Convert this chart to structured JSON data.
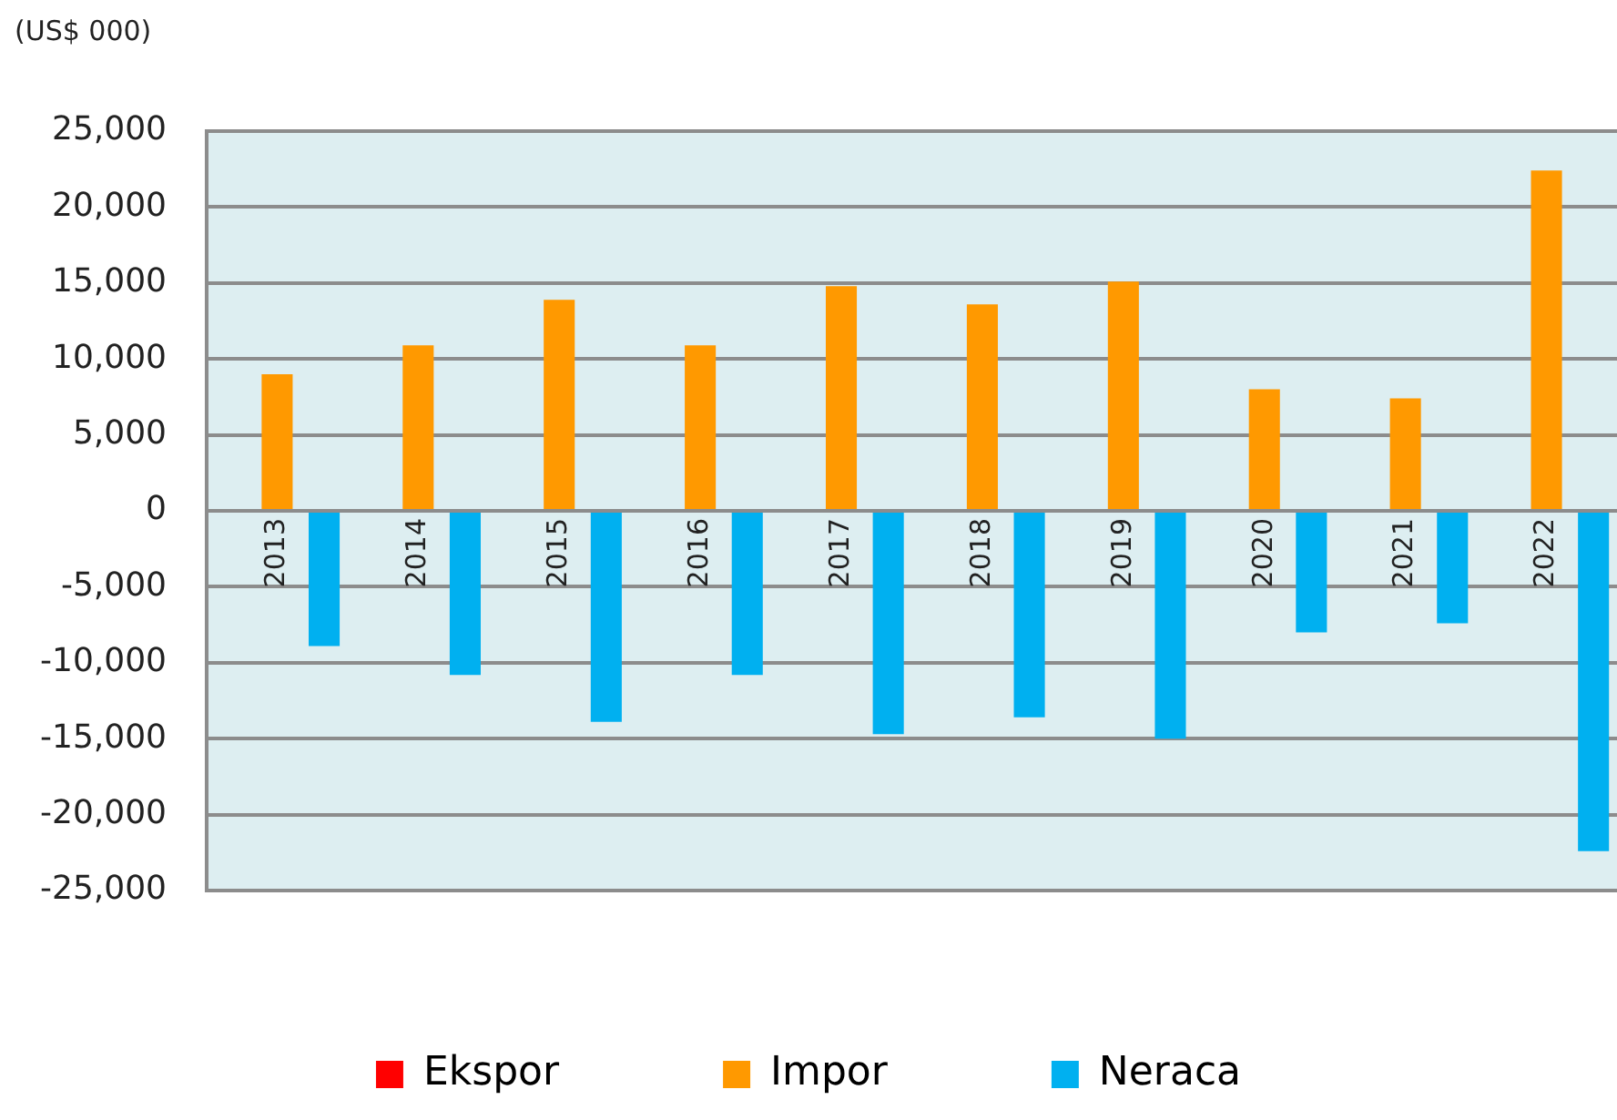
{
  "chart_data": {
    "type": "bar",
    "ylabel": "(US$ 000)",
    "categories": [
      "2013",
      "2014",
      "2015",
      "2016",
      "2017",
      "2018",
      "2019",
      "2020",
      "2021",
      "2022"
    ],
    "series": [
      {
        "name": "Ekspor",
        "color": "#ff0000",
        "values": [
          0,
          0,
          0,
          0,
          0,
          0,
          0,
          0,
          0,
          0
        ]
      },
      {
        "name": "Impor",
        "color": "#ff9900",
        "values": [
          9000,
          10900,
          13900,
          10900,
          14800,
          13600,
          15100,
          8000,
          7400,
          22400
        ]
      },
      {
        "name": "Neraca",
        "color": "#00b0f0",
        "values": [
          -8900,
          -10800,
          -13900,
          -10800,
          -14700,
          -13600,
          -15000,
          -8000,
          -7400,
          -22400
        ]
      }
    ],
    "ylim": [
      -25000,
      25000
    ],
    "yticks": [
      {
        "value": -25000,
        "label": "-25,000"
      },
      {
        "value": -20000,
        "label": "-20,000"
      },
      {
        "value": -15000,
        "label": "-15,000"
      },
      {
        "value": -10000,
        "label": "-10,000"
      },
      {
        "value": -5000,
        "label": "-5,000"
      },
      0,
      {
        "value": 5000,
        "label": "5,000"
      },
      {
        "value": 10000,
        "label": "10,000"
      },
      {
        "value": 15000,
        "label": "15,000"
      },
      {
        "value": 20000,
        "label": "20,000"
      },
      {
        "value": 25000,
        "label": "25,000"
      }
    ],
    "grid": "y",
    "legend": "bottom"
  }
}
